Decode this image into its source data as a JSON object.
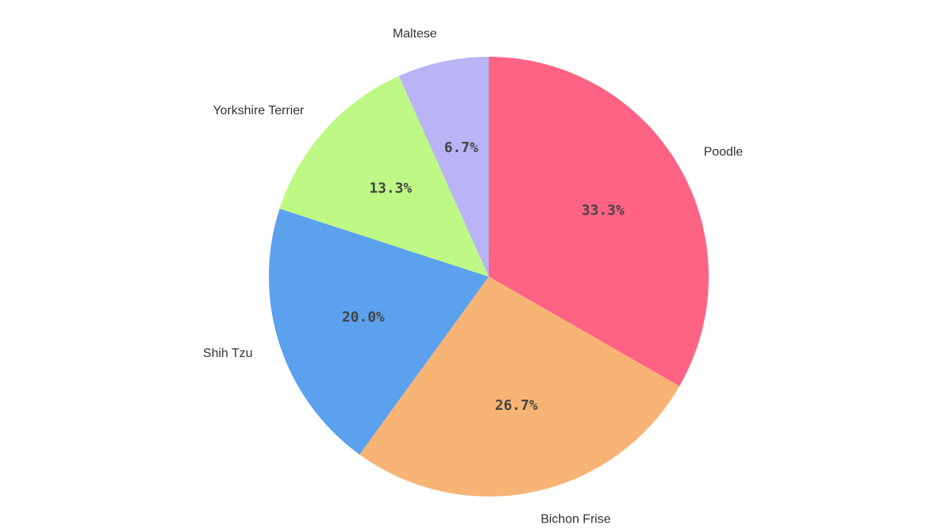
{
  "chart_data": {
    "type": "pie",
    "categories": [
      "Poodle",
      "Bichon Frise",
      "Shih Tzu",
      "Yorkshire Terrier",
      "Maltese"
    ],
    "values": [
      33.3,
      26.7,
      20.0,
      13.3,
      6.7
    ],
    "value_labels": [
      "33.3%",
      "26.7%",
      "20.0%",
      "13.3%",
      "6.7%"
    ],
    "colors": [
      "#ff6384",
      "#f8b475",
      "#5ca1ee",
      "#bef885",
      "#b8b4f6"
    ],
    "start_angle": "12 o'clock",
    "direction": "clockwise",
    "legend": "none",
    "title": ""
  }
}
